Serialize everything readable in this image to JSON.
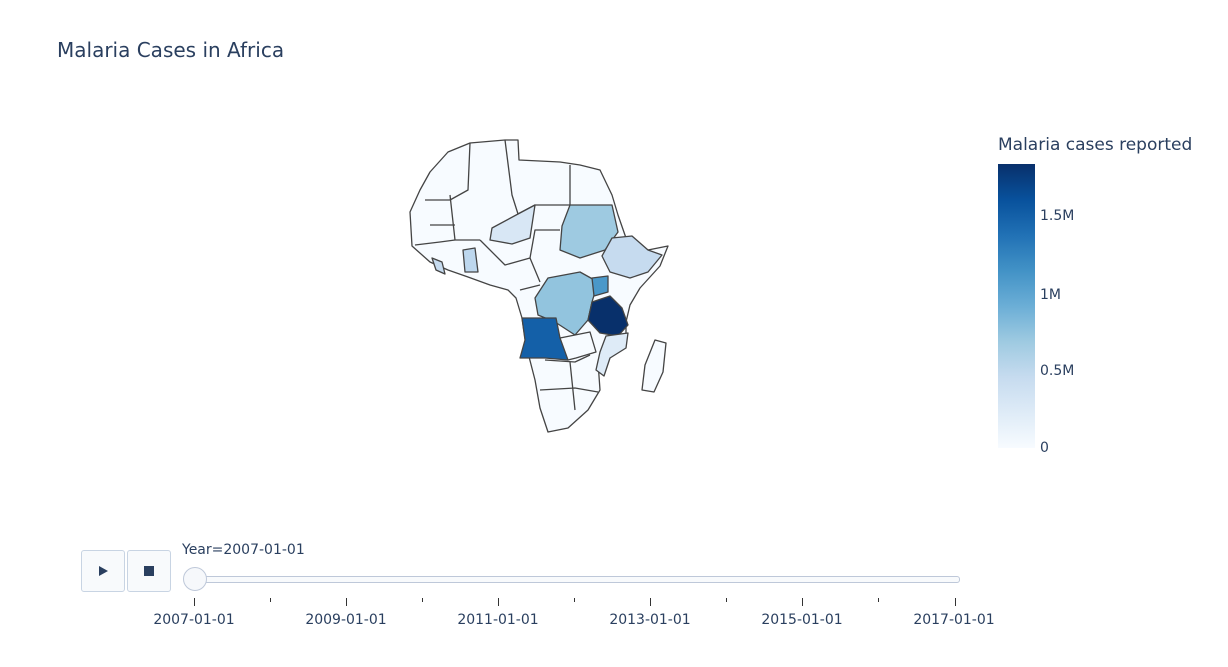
{
  "title": "Malaria Cases in Africa",
  "chart_data": {
    "type": "choropleth",
    "title": "Malaria Cases in Africa",
    "region": "Africa",
    "animation_frame": "Year",
    "current_frame": "2007-01-01",
    "colorscale": [
      "#f7fbff",
      "#deebf7",
      "#c6dbef",
      "#9ecae1",
      "#6baed6",
      "#4292c6",
      "#2171b5",
      "#08519c",
      "#08306b"
    ],
    "colorbar": {
      "title": "Malaria cases reported",
      "range": [
        0,
        1850000
      ],
      "ticks": [
        {
          "value": 0,
          "label": "0"
        },
        {
          "value": 500000,
          "label": "0.5M"
        },
        {
          "value": 1000000,
          "label": "1M"
        },
        {
          "value": 1500000,
          "label": "1.5M"
        }
      ]
    },
    "locations": [
      {
        "country": "Tanzania",
        "value": 1850000
      },
      {
        "country": "Angola",
        "value": 1580000
      },
      {
        "country": "Uganda",
        "value": 1150000
      },
      {
        "country": "Democratic Republic of the Congo",
        "value": 820000
      },
      {
        "country": "Sudan",
        "value": 780000
      },
      {
        "country": "Ethiopia",
        "value": 480000
      },
      {
        "country": "Ghana",
        "value": 450000
      },
      {
        "country": "Niger",
        "value": 320000
      },
      {
        "country": "Mozambique",
        "value": 260000
      },
      {
        "country": "Liberia",
        "value": 240000
      },
      {
        "country": "Mali",
        "value": 20000
      },
      {
        "country": "Nigeria",
        "value": 30000
      }
    ]
  },
  "slider": {
    "label": "Year=2007-01-01",
    "ticks": [
      "2007-01-01",
      "2009-01-01",
      "2011-01-01",
      "2013-01-01",
      "2015-01-01",
      "2017-01-01"
    ]
  },
  "icons": {
    "play": "play-icon",
    "stop": "stop-icon"
  }
}
